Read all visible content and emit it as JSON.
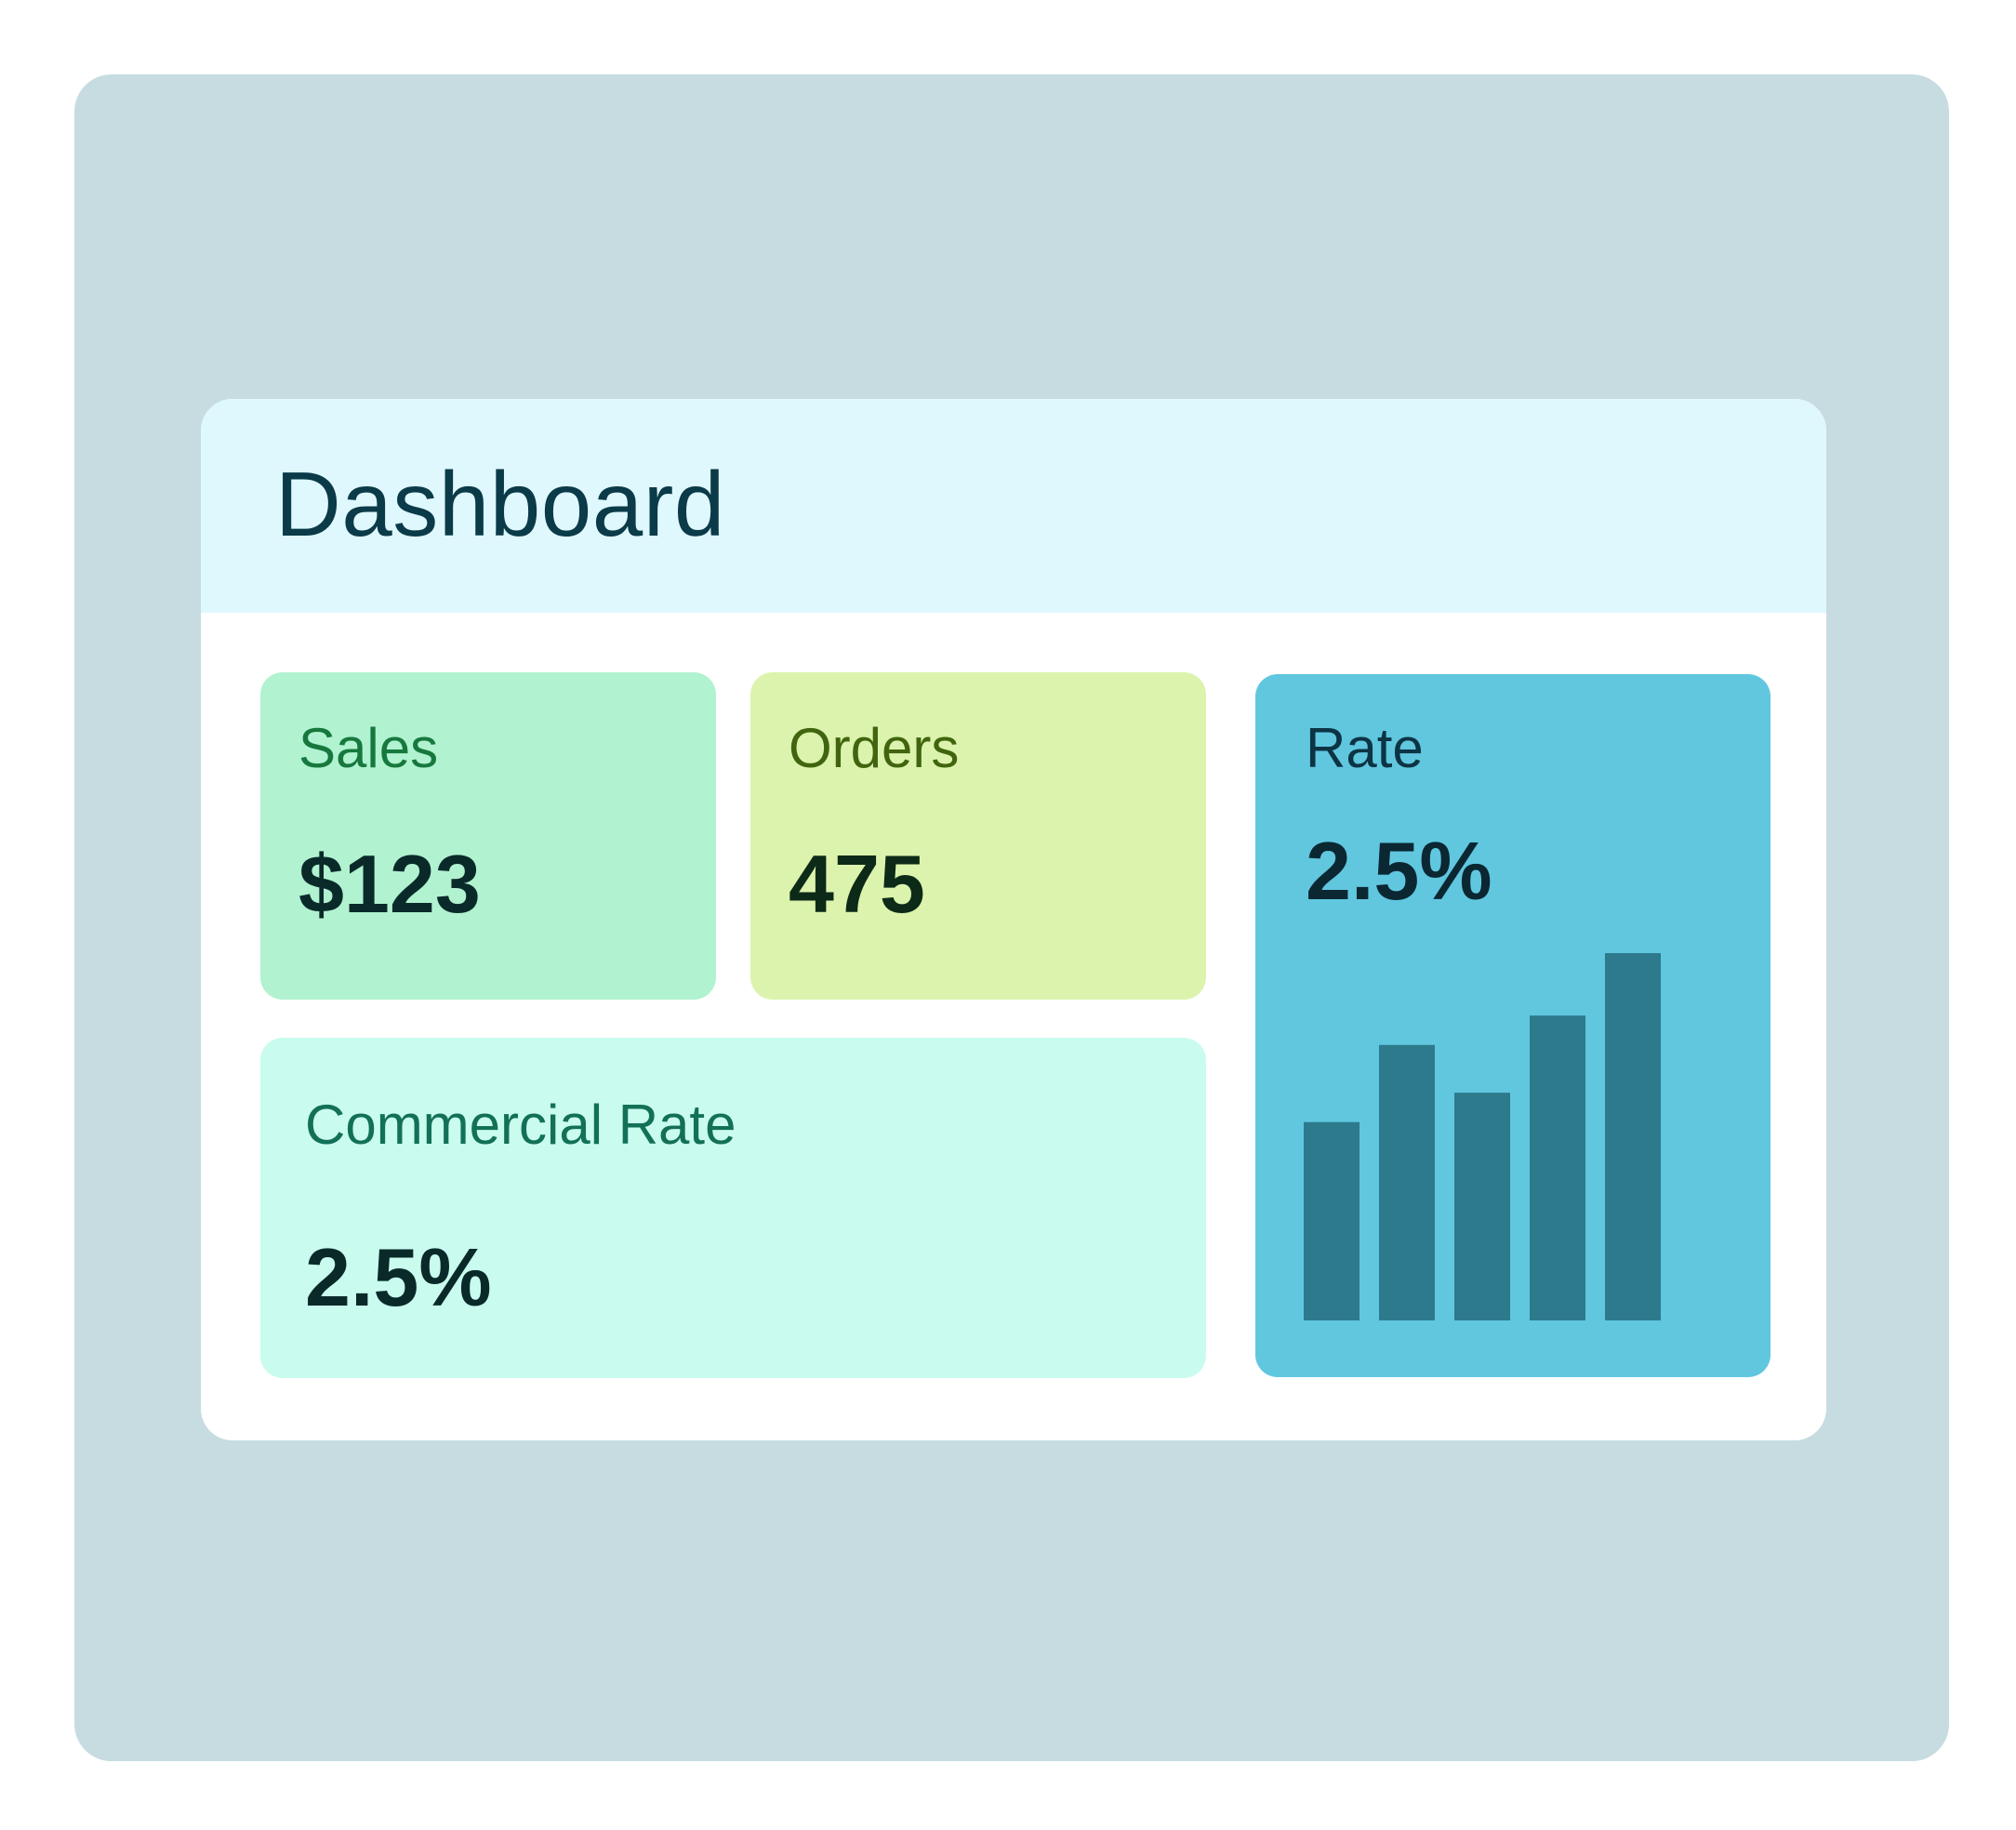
{
  "header": {
    "title": "Dashboard"
  },
  "cards": {
    "sales": {
      "label": "Sales",
      "value": "$123"
    },
    "orders": {
      "label": "Orders",
      "value": "475"
    },
    "commercial_rate": {
      "label": "Commercial Rate",
      "value": "2.5%"
    },
    "rate": {
      "label": "Rate",
      "value": "2.5%"
    }
  },
  "colors": {
    "backdrop": "#c6dce0",
    "header_bg": "#dff8fd",
    "sales_card": "#b1f2d0",
    "orders_card": "#dcf3ad",
    "commercial_card": "#c9fcee",
    "rate_card": "#60c7df",
    "bar": "#2d7a8d"
  },
  "chart_data": {
    "type": "bar",
    "categories": [
      "",
      "",
      "",
      "",
      ""
    ],
    "values": [
      54,
      75,
      62,
      83,
      100
    ],
    "ylim": [
      0,
      100
    ],
    "title": "",
    "xlabel": "",
    "ylabel": "",
    "grid": false,
    "legend": "none"
  }
}
